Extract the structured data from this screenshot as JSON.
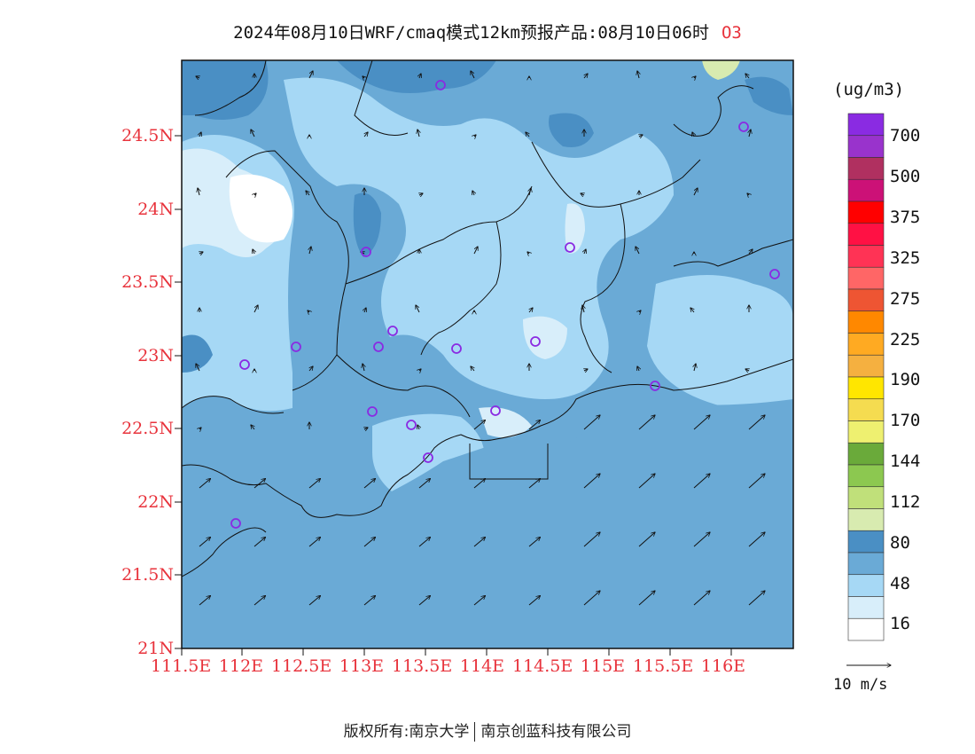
{
  "title": {
    "text": "2024年08月10日WRF/cmaq模式12km预报产品:08月10日06时",
    "species": "O3"
  },
  "axes": {
    "lat_labels": [
      "24.5N",
      "24N",
      "23.5N",
      "23N",
      "22.5N",
      "22N",
      "21.5N",
      "21N"
    ],
    "lon_labels": [
      "111.5E",
      "112E",
      "112.5E",
      "113E",
      "113.5E",
      "114E",
      "114.5E",
      "115E",
      "115.5E",
      "116E"
    ]
  },
  "colorbar": {
    "units": "(ug/m3)",
    "labels": [
      "700",
      "500",
      "375",
      "325",
      "275",
      "225",
      "190",
      "170",
      "144",
      "112",
      "80",
      "48",
      "16"
    ],
    "colors": [
      "#8a2be2",
      "#9933cc",
      "#b03060",
      "#cc1177",
      "#ff0000",
      "#ff1144",
      "#ff3355",
      "#ff6666",
      "#ee5533",
      "#ff8800",
      "#ffaa22",
      "#f5b040",
      "#ffe600",
      "#f5dc50",
      "#eef070",
      "#6aaa3a",
      "#8cc850",
      "#c0e07a",
      "#d8ebb0",
      "#4a8fc4",
      "#6aaad6",
      "#a6d8f5",
      "#d8eefa",
      "#ffffff"
    ],
    "accent_label_color": "#e8333c"
  },
  "wind_reference": {
    "label": "10 m/s"
  },
  "footer": {
    "left": "版权所有:南京大学",
    "right": "南京创蓝科技有限公司"
  }
}
